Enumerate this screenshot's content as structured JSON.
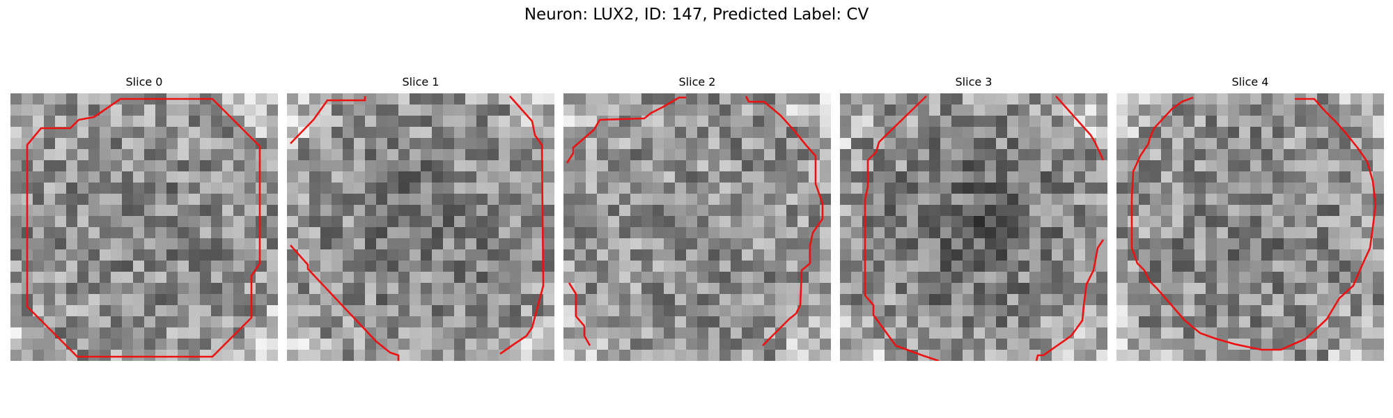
{
  "figure": {
    "title": "Neuron: LUX2, ID: 147, Predicted Label: CV",
    "contour_color": "#ee1111"
  },
  "slices": [
    {
      "title": "Slice 0"
    },
    {
      "title": "Slice 1"
    },
    {
      "title": "Slice 2"
    },
    {
      "title": "Slice 3"
    },
    {
      "title": "Slice 4"
    }
  ]
}
